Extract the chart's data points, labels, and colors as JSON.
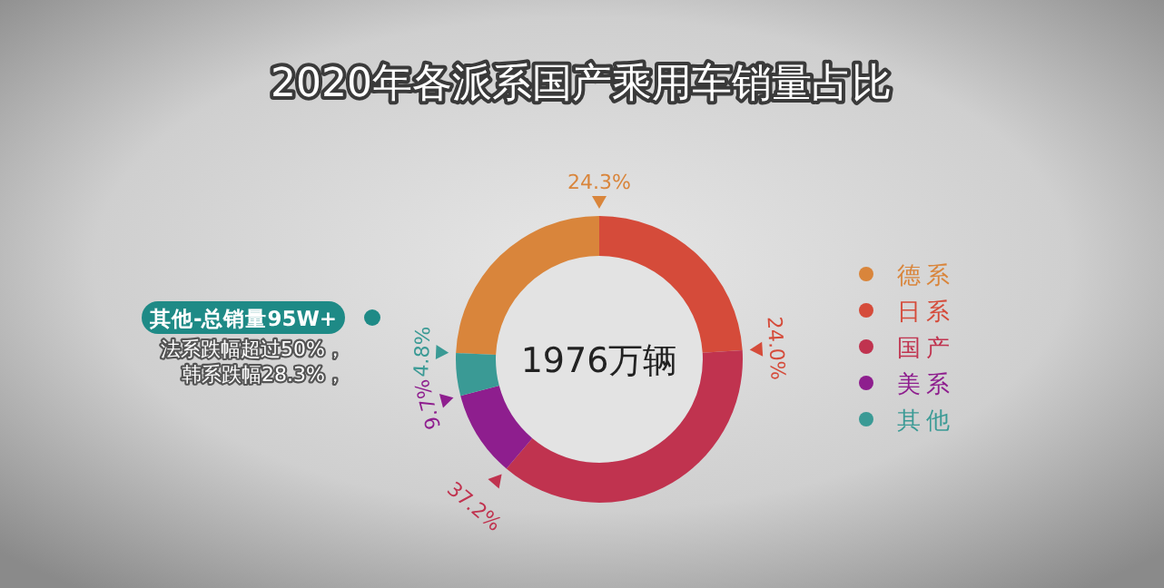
{
  "chart_data": {
    "type": "donut",
    "title": "2020年各派系国产乘用车销量占比",
    "categories": [
      "德系",
      "日系",
      "国产",
      "美系",
      "其他"
    ],
    "values": [
      24.3,
      24.0,
      37.2,
      9.7,
      4.8
    ],
    "value_labels": [
      "24.3%",
      "24.0%",
      "37.2%",
      "9.7%",
      "4.8%"
    ],
    "colors": [
      "#d9853b",
      "#d54b3a",
      "#c0334f",
      "#8e1e8e",
      "#3a9a95"
    ],
    "legend": "right",
    "annotations": [
      "1976万辆",
      "其他-总销量95W+",
      "法系跌幅超过50%，",
      "韩系跌幅28.3%，"
    ]
  }
}
